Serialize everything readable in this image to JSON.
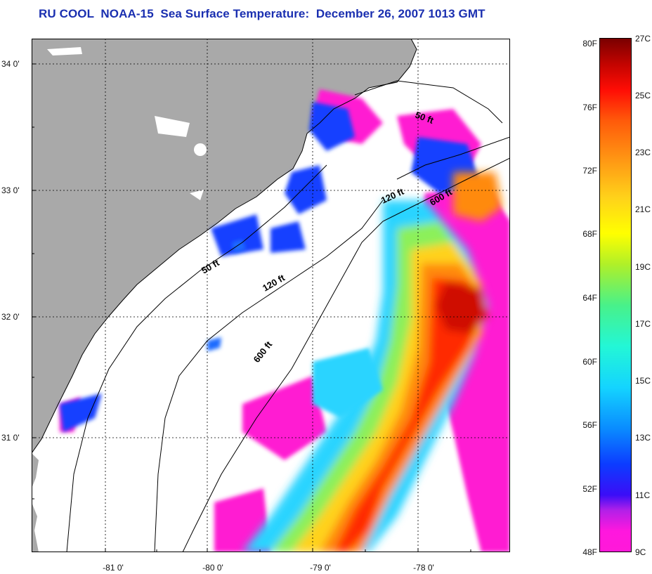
{
  "title": "RU COOL  NOAA-15  Sea Surface Temperature:  December 26, 2007 1013 GMT",
  "map": {
    "lat_labels": [
      "34 0'",
      "33 0'",
      "32 0'",
      "31 0'"
    ],
    "lon_labels": [
      "-81 0'",
      "-80 0'",
      "-79 0'",
      "-78 0'"
    ],
    "contour_labels": [
      "50 ft",
      "120 ft",
      "600 ft",
      "50 ft",
      "120 ft",
      "600 ft"
    ],
    "colors": {
      "land": "#a9a9a9",
      "cloud": "#ffffff",
      "cold": "#ff1dd2",
      "cool": "#1840ff",
      "mid": "#2bd4ff",
      "warm": "#ffd21a",
      "hot": "#ff2a06",
      "hottest": "#cf0a00"
    }
  },
  "colorbar": {
    "fahrenheit_labels": [
      "80F",
      "76F",
      "72F",
      "68F",
      "64F",
      "60F",
      "56F",
      "52F",
      "48F"
    ],
    "celsius_labels": [
      "27C",
      "25C",
      "23C",
      "21C",
      "19C",
      "17C",
      "15C",
      "13C",
      "11C",
      "9C"
    ]
  }
}
